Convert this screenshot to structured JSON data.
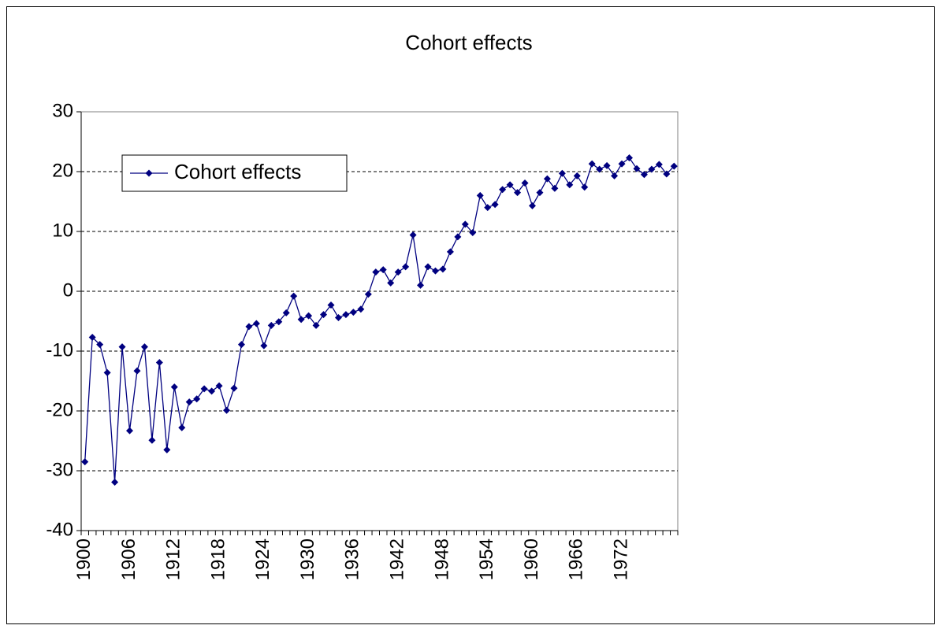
{
  "chart_data": {
    "type": "line",
    "title": "Cohort effects",
    "categories": [
      "1900",
      null,
      null,
      null,
      null,
      null,
      "1906",
      null,
      null,
      null,
      null,
      null,
      "1912",
      null,
      null,
      null,
      null,
      null,
      "1918",
      null,
      null,
      null,
      null,
      null,
      "1924",
      null,
      null,
      null,
      null,
      null,
      "1930",
      null,
      null,
      null,
      null,
      null,
      "1936",
      null,
      null,
      null,
      null,
      null,
      "1942",
      null,
      null,
      null,
      null,
      null,
      "1948",
      null,
      null,
      null,
      null,
      null,
      "1954",
      null,
      null,
      null,
      null,
      null,
      "1960",
      null,
      null,
      null,
      null,
      null,
      "1966",
      null,
      null,
      null,
      null,
      null,
      "1972",
      null,
      null,
      null,
      null,
      null,
      null,
      null
    ],
    "series": [
      {
        "name": "Cohort effects",
        "color": "#000080",
        "values": [
          -28.5,
          -7.7,
          -8.9,
          -13.6,
          -31.9,
          -9.3,
          -23.3,
          -13.3,
          -9.3,
          -24.9,
          -11.9,
          -26.5,
          -16.0,
          -22.8,
          -18.5,
          -18.0,
          -16.3,
          -16.7,
          -15.8,
          -19.9,
          -16.2,
          -8.9,
          -5.9,
          -5.4,
          -9.1,
          -5.7,
          -5.1,
          -3.6,
          -0.8,
          -4.7,
          -4.1,
          -5.7,
          -3.9,
          -2.3,
          -4.4,
          -3.9,
          -3.5,
          -3.0,
          -0.5,
          3.2,
          3.6,
          1.4,
          3.2,
          4.1,
          9.4,
          1.0,
          4.1,
          3.4,
          3.7,
          6.6,
          9.1,
          11.2,
          9.8,
          16.0,
          14.0,
          14.5,
          17.0,
          17.8,
          16.5,
          18.1,
          14.3,
          16.5,
          18.8,
          17.2,
          19.7,
          17.8,
          19.3,
          17.4,
          21.3,
          20.4,
          21.0,
          19.3,
          21.3,
          22.3,
          20.5,
          19.5,
          20.4,
          21.2,
          19.6,
          20.9
        ]
      }
    ],
    "ylim": [
      -40,
      30
    ],
    "yticks": [
      -40,
      -30,
      -20,
      -10,
      0,
      10,
      20,
      30
    ],
    "grid": true,
    "legend": "upper left"
  }
}
